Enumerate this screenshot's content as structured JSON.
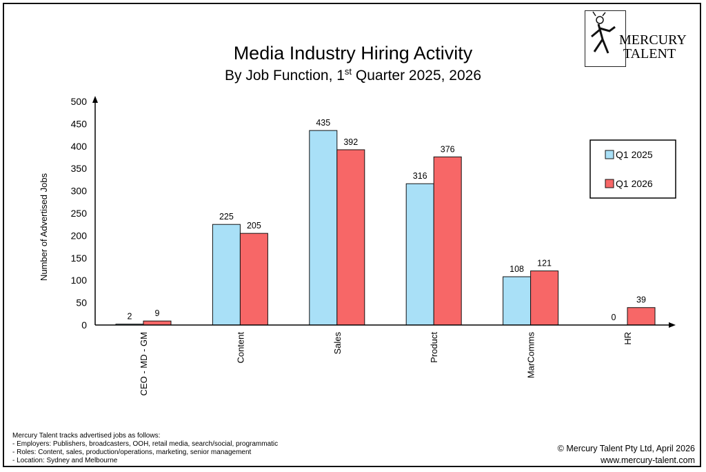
{
  "logo": {
    "line1": "MERCURY",
    "line2": "TALENT"
  },
  "chart_data": {
    "type": "bar",
    "title": "Media Industry Hiring Activity",
    "subtitle": {
      "pre": "By Job Function, 1",
      "sup": "st",
      "post": " Quarter 2025, 2026"
    },
    "ylabel": "Number of Advertised Jobs",
    "xlabel": "",
    "ylim": [
      0,
      500
    ],
    "yticks": [
      0,
      50,
      100,
      150,
      200,
      250,
      300,
      350,
      400,
      450,
      500
    ],
    "categories": [
      "CEO - MD - GM",
      "Content",
      "Sales",
      "Product",
      "MarComms",
      "HR"
    ],
    "series": [
      {
        "name": "Q1 2025",
        "color": "#a9e0f7",
        "values": [
          2,
          225,
          435,
          316,
          108,
          0
        ]
      },
      {
        "name": "Q1 2026",
        "color": "#f76767",
        "values": [
          9,
          205,
          392,
          376,
          121,
          39
        ]
      }
    ],
    "legend": "right",
    "grid": false
  },
  "footer": {
    "notes": [
      "Mercury Talent tracks advertised jobs as follows:",
      "- Employers: Publishers, broadcasters, OOH, retail media, search/social, programmatic",
      "- Roles: Content, sales, production/operations, marketing, senior management",
      "- Location: Sydney and Melbourne"
    ],
    "copyright": "© Mercury Talent Pty Ltd, April 2026",
    "website": "www.mercury-talent.com"
  }
}
